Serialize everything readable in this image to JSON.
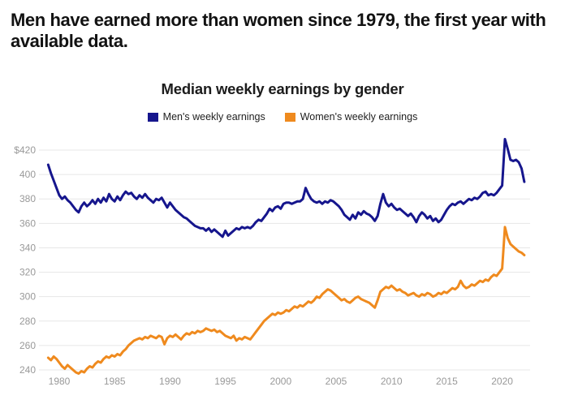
{
  "headline": "Men have earned more than women since 1979, the first year with available data.",
  "chart": {
    "title": "Median weekly earnings by gender",
    "legend": [
      {
        "label": "Men's weekly earnings",
        "color": "#16168d"
      },
      {
        "label": "Women's weekly earnings",
        "color": "#ef8a1e"
      }
    ]
  },
  "chart_data": {
    "type": "line",
    "title": "Median weekly earnings by gender",
    "x_unit": "year (quarterly points)",
    "x_start_year": 1979,
    "x_step_years": 0.25,
    "xlim": [
      1979,
      2022.3
    ],
    "ylim": [
      240,
      420
    ],
    "grid": "horizontal",
    "legend_position": "top",
    "xtick_labels": [
      "1980",
      "1985",
      "1990",
      "1995",
      "2000",
      "2005",
      "2010",
      "2015",
      "2020"
    ],
    "xtick_values": [
      1980,
      1985,
      1990,
      1995,
      2000,
      2005,
      2010,
      2015,
      2020
    ],
    "ytick_labels": [
      "$420",
      "400",
      "380",
      "360",
      "340",
      "320",
      "300",
      "280",
      "260",
      "240"
    ],
    "ytick_values": [
      420,
      400,
      380,
      360,
      340,
      320,
      300,
      280,
      260,
      240
    ],
    "series": [
      {
        "name": "Men's weekly earnings",
        "color": "#16168d",
        "values": [
          408,
          401,
          395,
          389,
          383,
          380,
          382,
          379,
          377,
          374,
          371,
          369,
          374,
          377,
          374,
          376,
          379,
          376,
          380,
          377,
          381,
          378,
          384,
          380,
          378,
          382,
          379,
          383,
          386,
          384,
          385,
          382,
          380,
          383,
          381,
          384,
          381,
          379,
          377,
          380,
          379,
          381,
          377,
          373,
          377,
          374,
          371,
          369,
          367,
          365,
          364,
          362,
          360,
          358,
          357,
          356,
          356,
          354,
          356,
          353,
          355,
          353,
          351,
          349,
          354,
          350,
          352,
          354,
          356,
          355,
          357,
          356,
          357,
          356,
          358,
          361,
          363,
          362,
          365,
          368,
          372,
          370,
          373,
          374,
          372,
          376,
          377,
          377,
          376,
          377,
          378,
          378,
          380,
          389,
          384,
          380,
          378,
          377,
          378,
          376,
          378,
          377,
          379,
          378,
          376,
          374,
          371,
          367,
          365,
          363,
          367,
          364,
          369,
          367,
          370,
          368,
          367,
          365,
          362,
          366,
          376,
          384,
          377,
          374,
          376,
          373,
          371,
          372,
          370,
          368,
          366,
          368,
          365,
          361,
          366,
          369,
          367,
          364,
          366,
          362,
          364,
          361,
          363,
          367,
          371,
          374,
          376,
          375,
          377,
          378,
          376,
          378,
          380,
          379,
          381,
          380,
          382,
          385,
          386,
          383,
          384,
          383,
          385,
          388,
          391,
          429,
          421,
          412,
          411,
          412,
          410,
          405,
          394
        ]
      },
      {
        "name": "Women's weekly earnings",
        "color": "#ef8a1e",
        "values": [
          250,
          248,
          251,
          249,
          246,
          243,
          241,
          244,
          242,
          240,
          238,
          237,
          239,
          238,
          241,
          243,
          242,
          245,
          247,
          246,
          249,
          251,
          250,
          252,
          251,
          253,
          252,
          255,
          257,
          260,
          262,
          264,
          265,
          266,
          265,
          267,
          266,
          268,
          267,
          266,
          268,
          267,
          261,
          266,
          268,
          267,
          269,
          267,
          265,
          268,
          270,
          269,
          271,
          270,
          272,
          271,
          272,
          274,
          273,
          272,
          273,
          271,
          272,
          270,
          268,
          267,
          266,
          268,
          264,
          266,
          265,
          267,
          266,
          265,
          268,
          271,
          274,
          277,
          280,
          282,
          284,
          286,
          285,
          287,
          286,
          287,
          289,
          288,
          290,
          292,
          291,
          293,
          292,
          294,
          296,
          295,
          297,
          300,
          299,
          302,
          304,
          306,
          305,
          303,
          301,
          299,
          297,
          298,
          296,
          295,
          297,
          299,
          300,
          298,
          297,
          296,
          295,
          293,
          291,
          297,
          304,
          306,
          308,
          307,
          309,
          307,
          305,
          306,
          304,
          303,
          301,
          302,
          303,
          301,
          300,
          302,
          301,
          303,
          302,
          300,
          301,
          303,
          302,
          304,
          303,
          305,
          307,
          306,
          308,
          313,
          309,
          307,
          308,
          310,
          309,
          311,
          313,
          312,
          314,
          313,
          316,
          318,
          317,
          320,
          323,
          357,
          348,
          343,
          341,
          339,
          337,
          336,
          334
        ]
      }
    ]
  }
}
